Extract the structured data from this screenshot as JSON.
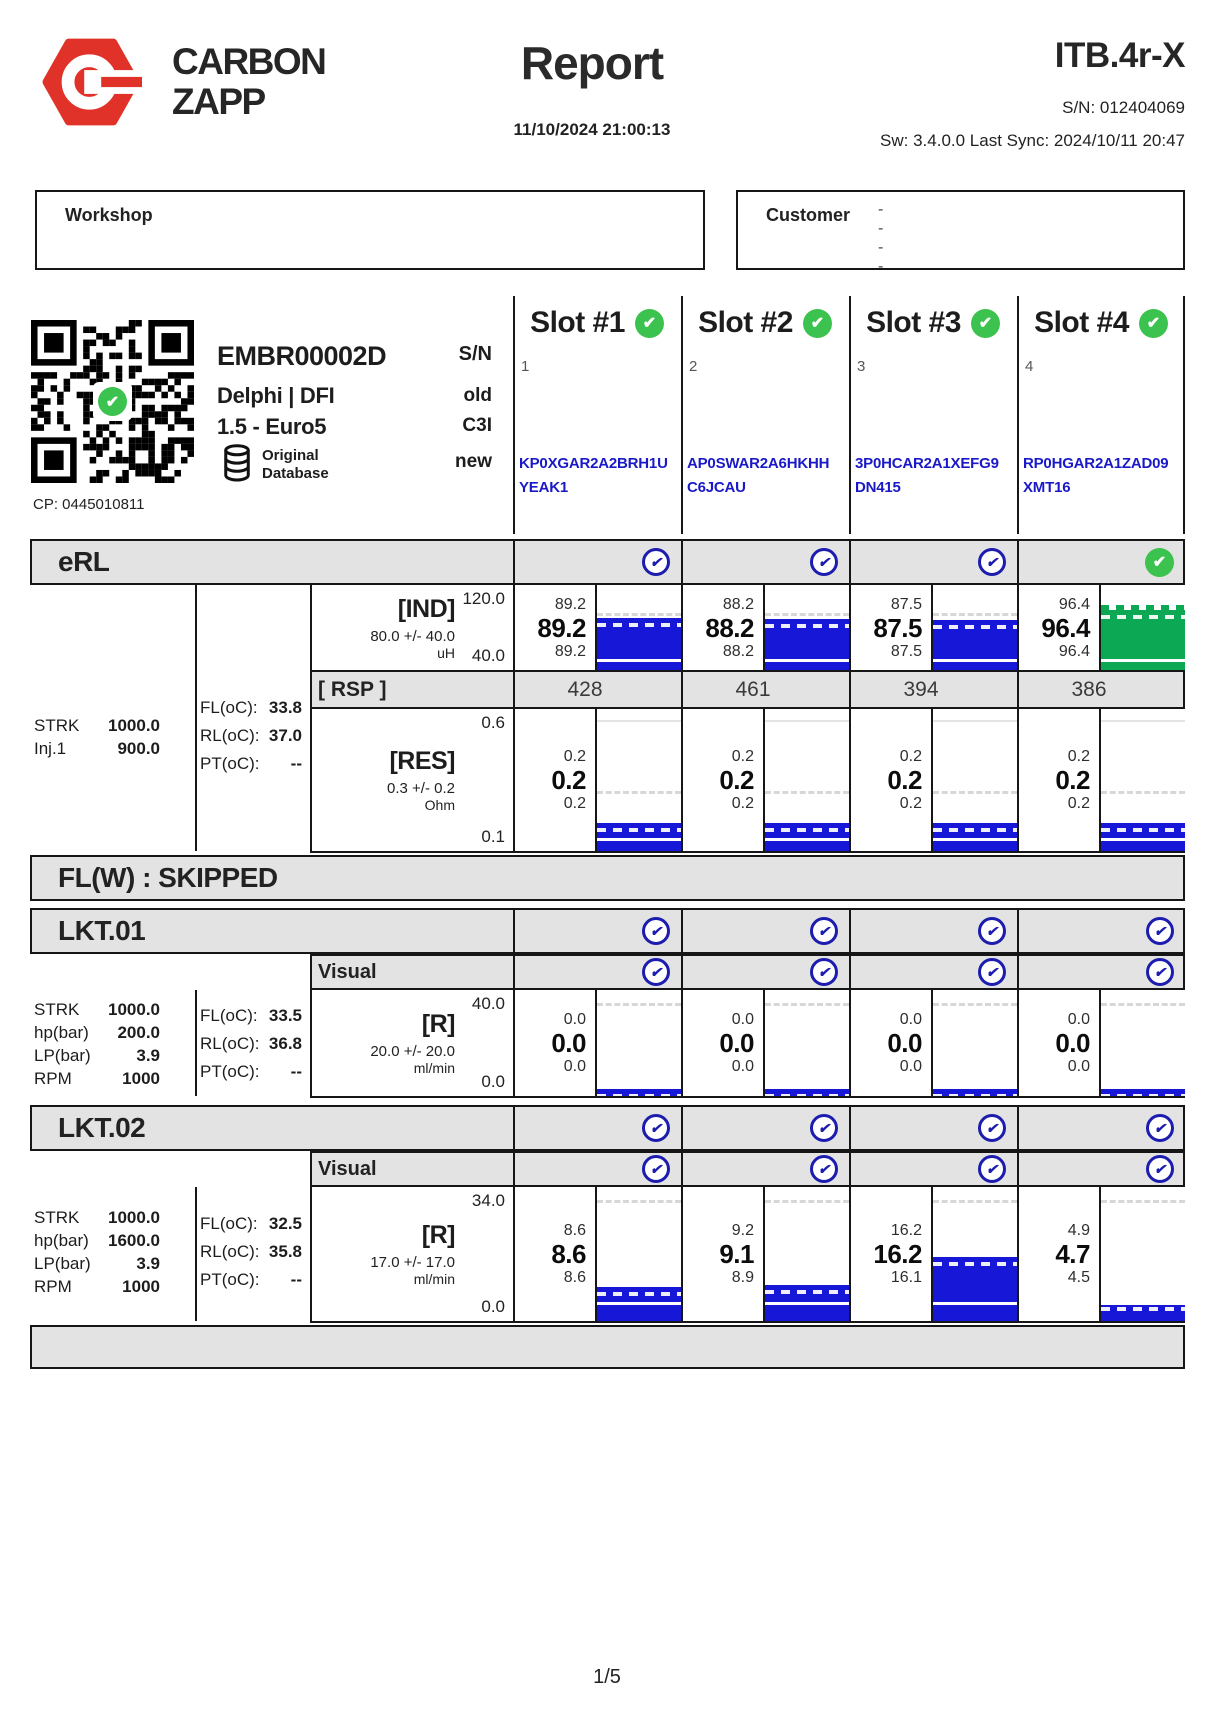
{
  "icons": {
    "check": "✔"
  },
  "header": {
    "brand_top": "CARBON",
    "brand_bottom": "ZAPP",
    "title": "Report",
    "datetime": "11/10/2024 21:00:13",
    "device_model": "ITB.4r-X",
    "device_serial": "S/N: 012404069",
    "sw_sync": "Sw: 3.4.0.0 Last Sync: 2024/10/11 20:47"
  },
  "workshop": {
    "label": "Workshop"
  },
  "customer": {
    "label": "Customer",
    "lines": [
      "-",
      "-",
      "-",
      "-"
    ]
  },
  "injector": {
    "cp": "CP: 0445010811",
    "model": "EMBR00002D",
    "brand_system": "Delphi | DFI",
    "engine": "1.5 - Euro5",
    "db_label_1": "Original",
    "db_label_2": "Database",
    "col_labels": {
      "sn": "S/N",
      "old": "old",
      "c3i": "C3I",
      "new": "new"
    }
  },
  "slots": [
    {
      "label": "Slot #1",
      "number": "1",
      "code_line1": "KP0XGAR2A2BRH1U",
      "code_line2": "YEAK1"
    },
    {
      "label": "Slot #2",
      "number": "2",
      "code_line1": "AP0SWAR2A6HKHH",
      "code_line2": "C6JCAU"
    },
    {
      "label": "Slot #3",
      "number": "3",
      "code_line1": "3P0HCAR2A1XEFG9",
      "code_line2": "DN415"
    },
    {
      "label": "Slot #4",
      "number": "4",
      "code_line1": "RP0HGAR2A1ZAD09",
      "code_line2": "XMT16"
    }
  ],
  "erl": {
    "title": "eRL",
    "params": [
      {
        "label": "STRK",
        "value": "1000.0"
      },
      {
        "label": "Inj.1",
        "value": "900.0"
      }
    ],
    "temps": [
      {
        "label": "FL(oC):",
        "value": "33.8"
      },
      {
        "label": "RL(oC):",
        "value": "37.0"
      },
      {
        "label": "PT(oC):",
        "value": "--"
      }
    ],
    "ind": {
      "name": "[IND]",
      "tolerance": "80.0 +/- 40.0",
      "unit": "uH",
      "scale_top": "120.0",
      "scale_bottom": "40.0",
      "slots": [
        {
          "max": "89.2",
          "avg": "89.2",
          "min": "89.2",
          "value": 89.2
        },
        {
          "max": "88.2",
          "avg": "88.2",
          "min": "88.2",
          "value": 88.2
        },
        {
          "max": "87.5",
          "avg": "87.5",
          "min": "87.5",
          "value": 87.5
        },
        {
          "max": "96.4",
          "avg": "96.4",
          "min": "96.4",
          "value": 96.4
        }
      ]
    },
    "rsp": {
      "name": "[ RSP ]",
      "values": [
        "428",
        "461",
        "394",
        "386"
      ]
    },
    "res": {
      "name": "[RES]",
      "tolerance": "0.3 +/- 0.2",
      "unit": "Ohm",
      "scale_top": "0.6",
      "scale_bottom": "0.1",
      "slots": [
        {
          "max": "0.2",
          "avg": "0.2",
          "min": "0.2",
          "value": 0.2
        },
        {
          "max": "0.2",
          "avg": "0.2",
          "min": "0.2",
          "value": 0.2
        },
        {
          "max": "0.2",
          "avg": "0.2",
          "min": "0.2",
          "value": 0.2
        },
        {
          "max": "0.2",
          "avg": "0.2",
          "min": "0.2",
          "value": 0.2
        }
      ]
    }
  },
  "flw": {
    "title": "FL(W) : SKIPPED"
  },
  "lkt01": {
    "title": "LKT.01",
    "visual_label": "Visual",
    "params": [
      {
        "label": "STRK",
        "value": "1000.0"
      },
      {
        "label": "hp(bar)",
        "value": "200.0"
      },
      {
        "label": "LP(bar)",
        "value": "3.9"
      },
      {
        "label": "RPM",
        "value": "1000"
      }
    ],
    "temps": [
      {
        "label": "FL(oC):",
        "value": "33.5"
      },
      {
        "label": "RL(oC):",
        "value": "36.8"
      },
      {
        "label": "PT(oC):",
        "value": "--"
      }
    ],
    "r": {
      "name": "[R]",
      "tolerance": "20.0 +/- 20.0",
      "unit": "ml/min",
      "scale_top": "40.0",
      "scale_bottom": "0.0",
      "slots": [
        {
          "max": "0.0",
          "avg": "0.0",
          "min": "0.0",
          "value": 0
        },
        {
          "max": "0.0",
          "avg": "0.0",
          "min": "0.0",
          "value": 0
        },
        {
          "max": "0.0",
          "avg": "0.0",
          "min": "0.0",
          "value": 0
        },
        {
          "max": "0.0",
          "avg": "0.0",
          "min": "0.0",
          "value": 0
        }
      ]
    }
  },
  "lkt02": {
    "title": "LKT.02",
    "visual_label": "Visual",
    "params": [
      {
        "label": "STRK",
        "value": "1000.0"
      },
      {
        "label": "hp(bar)",
        "value": "1600.0"
      },
      {
        "label": "LP(bar)",
        "value": "3.9"
      },
      {
        "label": "RPM",
        "value": "1000"
      }
    ],
    "temps": [
      {
        "label": "FL(oC):",
        "value": "32.5"
      },
      {
        "label": "RL(oC):",
        "value": "35.8"
      },
      {
        "label": "PT(oC):",
        "value": "--"
      }
    ],
    "r": {
      "name": "[R]",
      "tolerance": "17.0 +/- 17.0",
      "unit": "ml/min",
      "scale_top": "34.0",
      "scale_bottom": "0.0",
      "slots": [
        {
          "max": "8.6",
          "avg": "8.6",
          "min": "8.6",
          "value": 8.6
        },
        {
          "max": "9.2",
          "avg": "9.1",
          "min": "8.9",
          "value": 9.1
        },
        {
          "max": "16.2",
          "avg": "16.2",
          "min": "16.1",
          "value": 16.2
        },
        {
          "max": "4.9",
          "avg": "4.7",
          "min": "4.5",
          "value": 4.7
        }
      ]
    }
  },
  "footer": {
    "page": "1/5"
  }
}
